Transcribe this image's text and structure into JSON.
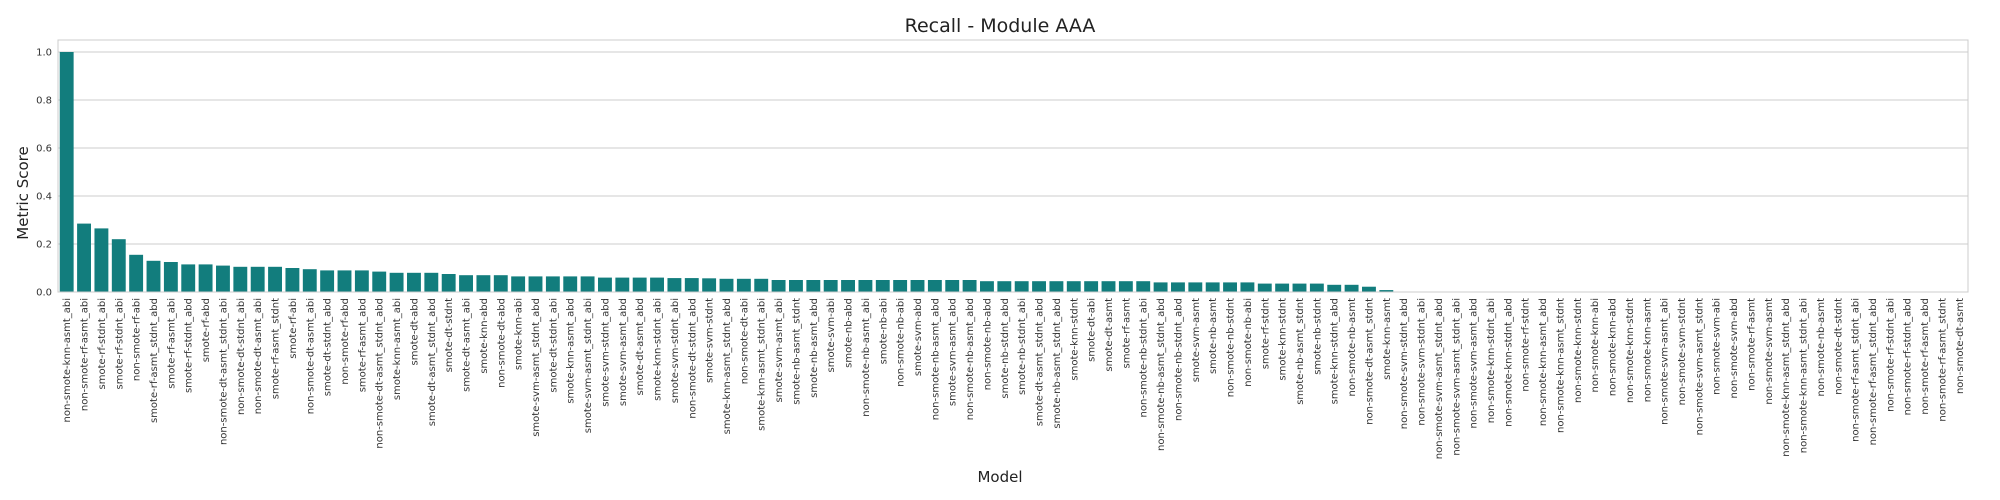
{
  "chart_data": {
    "type": "bar",
    "title": "Recall - Module AAA",
    "xlabel": "Model",
    "ylabel": "Metric Score",
    "ylim": [
      0,
      1.05
    ],
    "yticks": [
      "0.0",
      "0.2",
      "0.4",
      "0.6",
      "0.8",
      "1.0"
    ],
    "grid": "horizontal",
    "bar_color": "#127D7D",
    "categories": [
      "non-smote-knn-asmt_abi",
      "non-smote-rf-asmt_abi",
      "smote-rf-stdnt_abi",
      "smote-rf-stdnt_abi",
      "non-smote-rf-abi",
      "smote-rf-asmt_stdnt_abd",
      "smote-rf-asmt_abi",
      "smote-rf-stdnt_abd",
      "smote-rf-abd",
      "non-smote-dt-asmt_stdnt_abi",
      "non-smote-dt-stdnt_abi",
      "non-smote-dt-asmt_abi",
      "smote-rf-asmt_stdnt",
      "smote-rf-abi",
      "non-smote-dt-asmt_abi",
      "smote-dt-stdnt_abd",
      "non-smote-rf-abd",
      "smote-rf-asmt_abd",
      "non-smote-dt-asmt_stdnt_abd",
      "smote-knn-asmt_abi",
      "smote-dt-abd",
      "smote-dt-asmt_stdnt_abd",
      "smote-dt-stdnt",
      "smote-dt-asmt_abi",
      "smote-knn-abd",
      "non-smote-dt-abd",
      "smote-knn-abi",
      "smote-svm-asmt_stdnt_abd",
      "smote-dt-stdnt_abi",
      "smote-knn-asmt_abd",
      "smote-svm-asmt_stdnt_abi",
      "smote-svm-stdnt_abd",
      "smote-svm-asmt_abd",
      "smote-dt-asmt_abd",
      "smote-knn-stdnt_abi",
      "smote-svm-stdnt_abi",
      "non-smote-dt-stdnt_abd",
      "smote-svm-stdnt",
      "smote-knn-asmt_stdnt_abd",
      "non-smote-dt-abi",
      "smote-knn-asmt_stdnt_abi",
      "smote-svm-asmt_abi",
      "smote-nb-asmt_stdnt",
      "smote-nb-asmt_abd",
      "smote-svm-abi",
      "smote-nb-abd",
      "non-smote-nb-asmt_abi",
      "smote-nb-abi",
      "non-smote-nb-abi",
      "smote-svm-abd",
      "non-smote-nb-asmt_abd",
      "smote-svm-asmt_abd",
      "non-smote-nb-asmt_abd",
      "non-smote-nb-abd",
      "smote-nb-stdnt_abd",
      "smote-nb-stdnt_abi",
      "smote-dt-asmt_stdnt_abd",
      "smote-nb-asmt_stdnt_abd",
      "smote-knn-stdnt",
      "smote-dt-abi",
      "smote-dt-asmt",
      "smote-rf-asmt",
      "non-smote-nb-stdnt_abi",
      "non-smote-nb-asmt_stdnt_abd",
      "non-smote-nb-stdnt_abd",
      "smote-svm-asmt",
      "smote-nb-asmt",
      "non-smote-nb-stdnt",
      "non-smote-nb-abi",
      "smote-rf-stdnt",
      "smote-knn-stdnt",
      "smote-nb-asmt_stdnt",
      "smote-nb-stdnt",
      "smote-knn-stdnt_abd",
      "non-smote-nb-asmt",
      "non-smote-dt-asmt_stdnt",
      "smote-knn-asmt",
      "non-smote-svm-stdnt_abd",
      "non-smote-svm-stdnt_abi",
      "non-smote-svm-asmt_stdnt_abd",
      "non-smote-svm-asmt_stdnt_abi",
      "non-smote-svm-asmt_abd",
      "non-smote-knn-stdnt_abi",
      "non-smote-knn-stdnt_abd",
      "non-smote-rf-stdnt",
      "non-smote-knn-asmt_abd",
      "non-smote-knn-asmt_stdnt",
      "non-smote-knn-stdnt",
      "non-smote-knn-abi",
      "non-smote-knn-abd",
      "non-smote-knn-stdnt",
      "non-smote-knn-asmt",
      "non-smote-svm-asmt_abi",
      "non-smote-svm-stdnt",
      "non-smote-svm-asmt_stdnt",
      "non-smote-svm-abi",
      "non-smote-svm-abd",
      "non-smote-rf-asmt",
      "non-smote-svm-asmt",
      "non-smote-knn-asmt_stdnt_abd",
      "non-smote-knn-asmt_stdnt_abi",
      "non-smote-nb-asmt",
      "non-smote-dt-stdnt",
      "non-smote-rf-asmt_stdnt_abi",
      "non-smote-rf-asmt_stdnt_abd",
      "non-smote-rf-stdnt_abi",
      "non-smote-rf-stdnt_abd",
      "non-smote-rf-asmt_abd",
      "non-smote-rf-asmt_stdnt",
      "non-smote-dt-asmt"
    ],
    "values": [
      1.0,
      0.285,
      0.265,
      0.22,
      0.155,
      0.13,
      0.125,
      0.115,
      0.115,
      0.11,
      0.105,
      0.105,
      0.105,
      0.1,
      0.095,
      0.09,
      0.09,
      0.09,
      0.085,
      0.08,
      0.08,
      0.08,
      0.075,
      0.07,
      0.07,
      0.07,
      0.065,
      0.065,
      0.065,
      0.065,
      0.065,
      0.06,
      0.06,
      0.06,
      0.06,
      0.058,
      0.058,
      0.057,
      0.055,
      0.055,
      0.055,
      0.05,
      0.05,
      0.05,
      0.05,
      0.05,
      0.05,
      0.05,
      0.05,
      0.05,
      0.05,
      0.05,
      0.05,
      0.045,
      0.045,
      0.045,
      0.045,
      0.045,
      0.045,
      0.045,
      0.045,
      0.045,
      0.045,
      0.04,
      0.04,
      0.04,
      0.04,
      0.04,
      0.04,
      0.035,
      0.035,
      0.035,
      0.035,
      0.03,
      0.03,
      0.022,
      0.008,
      0,
      0,
      0,
      0,
      0,
      0,
      0,
      0,
      0,
      0,
      0,
      0,
      0,
      0,
      0,
      0,
      0,
      0,
      0,
      0,
      0,
      0,
      0,
      0,
      0,
      0,
      0,
      0,
      0,
      0,
      0,
      0,
      0
    ]
  }
}
